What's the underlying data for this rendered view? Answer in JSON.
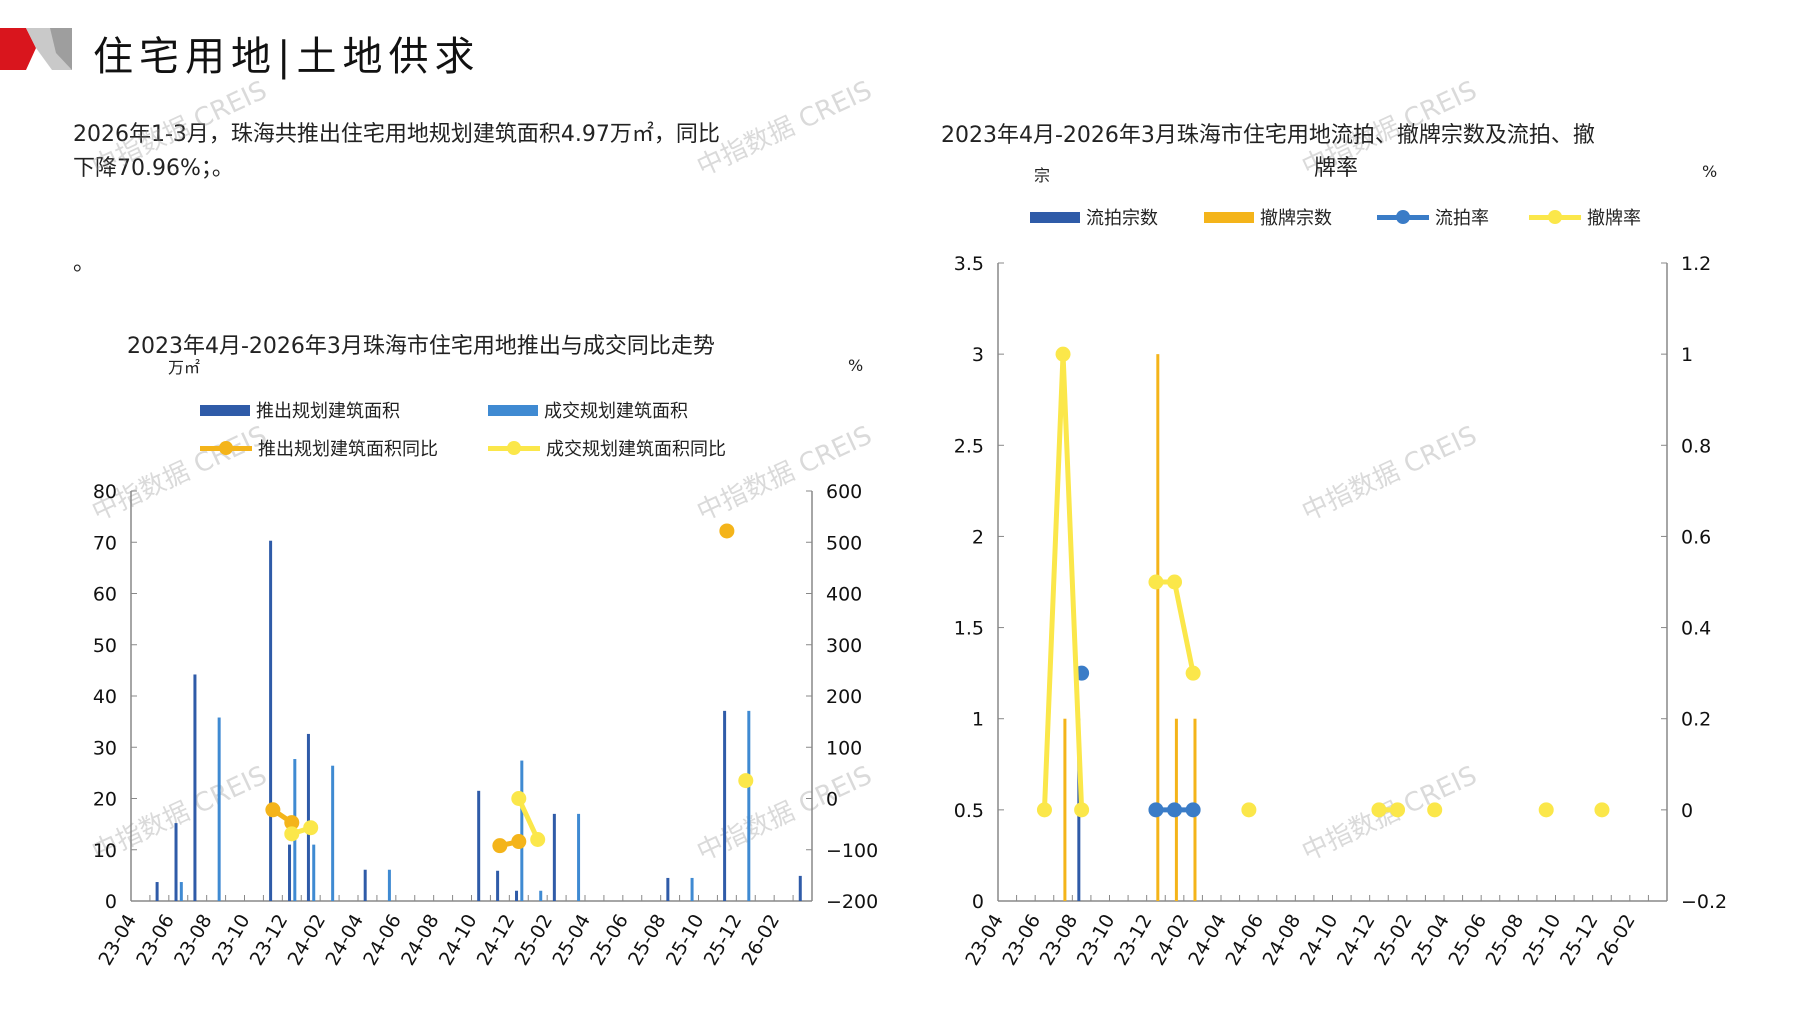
{
  "header": {
    "title": "住宅用地|土地供求"
  },
  "summary": {
    "line1": "2026年1-3月，珠海共推出住宅用地规划建筑面积4.97万㎡，同比",
    "line2": "下降70.96%；。",
    "line3": "。"
  },
  "watermark": "中指数据 CREIS",
  "colors": {
    "brand_red": "#d9151d",
    "dark_blue": "#2f5ba8",
    "light_blue": "#3f8ad2",
    "orange": "#f4b41a",
    "yellow": "#fbe74a",
    "rate_blue": "#3a7cc7"
  },
  "chart_data": [
    {
      "type": "bar",
      "title": "2023年4月-2026年3月珠海市住宅用地推出与成交同比走势",
      "ylabel": "万㎡",
      "y2label": "%",
      "ylim": [
        0,
        80
      ],
      "y2lim": [
        -200,
        600
      ],
      "yticks": [
        "80",
        "70",
        "60",
        "50",
        "40",
        "30",
        "20",
        "10",
        "0"
      ],
      "y2ticks": [
        "600",
        "500",
        "400",
        "300",
        "200",
        "100",
        "0",
        "−100",
        "−200"
      ],
      "legend": [
        "推出规划建筑面积",
        "成交规划建筑面积",
        "推出规划建筑面积同比",
        "成交规划建筑面积同比"
      ],
      "xtick_labels": [
        "23-04",
        "23-06",
        "23-08",
        "23-10",
        "23-12",
        "24-02",
        "24-04",
        "24-06",
        "24-08",
        "24-10",
        "24-12",
        "25-02",
        "25-04",
        "25-06",
        "25-08",
        "25-10",
        "25-12",
        "26-02"
      ],
      "series": [
        {
          "name": "推出规划建筑面积",
          "kind": "bar",
          "values": [
            0,
            3.7,
            15.2,
            44.2,
            0,
            0,
            0,
            70.3,
            11,
            32.6,
            0,
            0,
            6.1,
            0,
            0,
            0,
            0,
            0,
            21.5,
            5.9,
            2,
            0,
            17,
            0,
            0,
            0,
            0,
            0,
            4.5,
            0,
            0,
            37.1,
            0,
            0,
            0,
            4.9
          ]
        },
        {
          "name": "成交规划建筑面积",
          "kind": "bar",
          "values": [
            0,
            0,
            3.7,
            0,
            35.8,
            0,
            0,
            0,
            27.7,
            11,
            26.4,
            0,
            0,
            6.1,
            0,
            0,
            0,
            0,
            0,
            0,
            27.4,
            2,
            0,
            17,
            0,
            0,
            0,
            0,
            0,
            4.5,
            0,
            0,
            37.1,
            0,
            0,
            0
          ]
        },
        {
          "name": "推出规划建筑面积同比",
          "kind": "line",
          "values": [
            null,
            null,
            null,
            null,
            null,
            null,
            null,
            -22,
            -47,
            null,
            null,
            null,
            null,
            null,
            null,
            null,
            null,
            null,
            null,
            -92,
            -84,
            null,
            null,
            null,
            null,
            null,
            null,
            null,
            null,
            null,
            null,
            522,
            null,
            null,
            null,
            null
          ]
        },
        {
          "name": "成交规划建筑面积同比",
          "kind": "line",
          "values": [
            null,
            null,
            null,
            null,
            null,
            null,
            null,
            null,
            -69,
            -57,
            null,
            null,
            null,
            null,
            null,
            null,
            null,
            null,
            null,
            null,
            0,
            -80,
            null,
            null,
            null,
            null,
            null,
            null,
            null,
            null,
            null,
            null,
            35,
            null,
            null,
            null
          ]
        }
      ]
    },
    {
      "type": "bar",
      "title_line1": "2023年4月-2026年3月珠海市住宅用地流拍、撤牌宗数及流拍、撤",
      "title_line2": "牌率",
      "ylabel": "宗",
      "y2label": "%",
      "ylim": [
        0,
        3.5
      ],
      "y2lim": [
        -0.2,
        1.2
      ],
      "yticks": [
        "3.5",
        "3",
        "2.5",
        "2",
        "1.5",
        "1",
        "0.5",
        "0"
      ],
      "y2ticks": [
        "1.2",
        "1",
        "0.8",
        "0.6",
        "0.4",
        "0.2",
        "0",
        "−0.2"
      ],
      "legend": [
        "流拍宗数",
        "撤牌宗数",
        "流拍率",
        "撤牌率"
      ],
      "xtick_labels": [
        "23-04",
        "23-06",
        "23-08",
        "23-10",
        "23-12",
        "24-02",
        "24-04",
        "24-06",
        "24-08",
        "24-10",
        "24-12",
        "25-02",
        "25-04",
        "25-06",
        "25-08",
        "25-10",
        "25-12",
        "26-02"
      ],
      "series": [
        {
          "name": "流拍宗数",
          "kind": "bar",
          "values": [
            0,
            0,
            0,
            0,
            1,
            0,
            0,
            0,
            0,
            0,
            0,
            0,
            0,
            0,
            0,
            0,
            0,
            0,
            0,
            0,
            0,
            0,
            0,
            0,
            0,
            0,
            0,
            0,
            0,
            0,
            0,
            0,
            0,
            0,
            0,
            0
          ]
        },
        {
          "name": "撤牌宗数",
          "kind": "bar",
          "values": [
            0,
            0,
            0,
            1,
            0,
            0,
            0,
            0,
            3,
            1,
            1,
            0,
            0,
            0,
            0,
            0,
            0,
            0,
            0,
            0,
            0,
            0,
            0,
            0,
            0,
            0,
            0,
            0,
            0,
            0,
            0,
            0,
            0,
            0,
            0,
            0
          ]
        },
        {
          "name": "流拍率",
          "kind": "line",
          "values": [
            null,
            null,
            null,
            null,
            0.3,
            null,
            null,
            null,
            0,
            0,
            0,
            null,
            null,
            null,
            null,
            null,
            null,
            null,
            null,
            null,
            null,
            null,
            null,
            null,
            null,
            null,
            null,
            null,
            null,
            null,
            null,
            null,
            null,
            null,
            null,
            null
          ]
        },
        {
          "name": "撤牌率",
          "kind": "line",
          "values": [
            null,
            null,
            0,
            1,
            0,
            null,
            null,
            null,
            0.5,
            0.5,
            0.3,
            null,
            null,
            0,
            null,
            null,
            null,
            null,
            null,
            null,
            0,
            0,
            null,
            0,
            null,
            null,
            null,
            null,
            null,
            0,
            null,
            null,
            0,
            null,
            null,
            null
          ]
        }
      ]
    }
  ]
}
